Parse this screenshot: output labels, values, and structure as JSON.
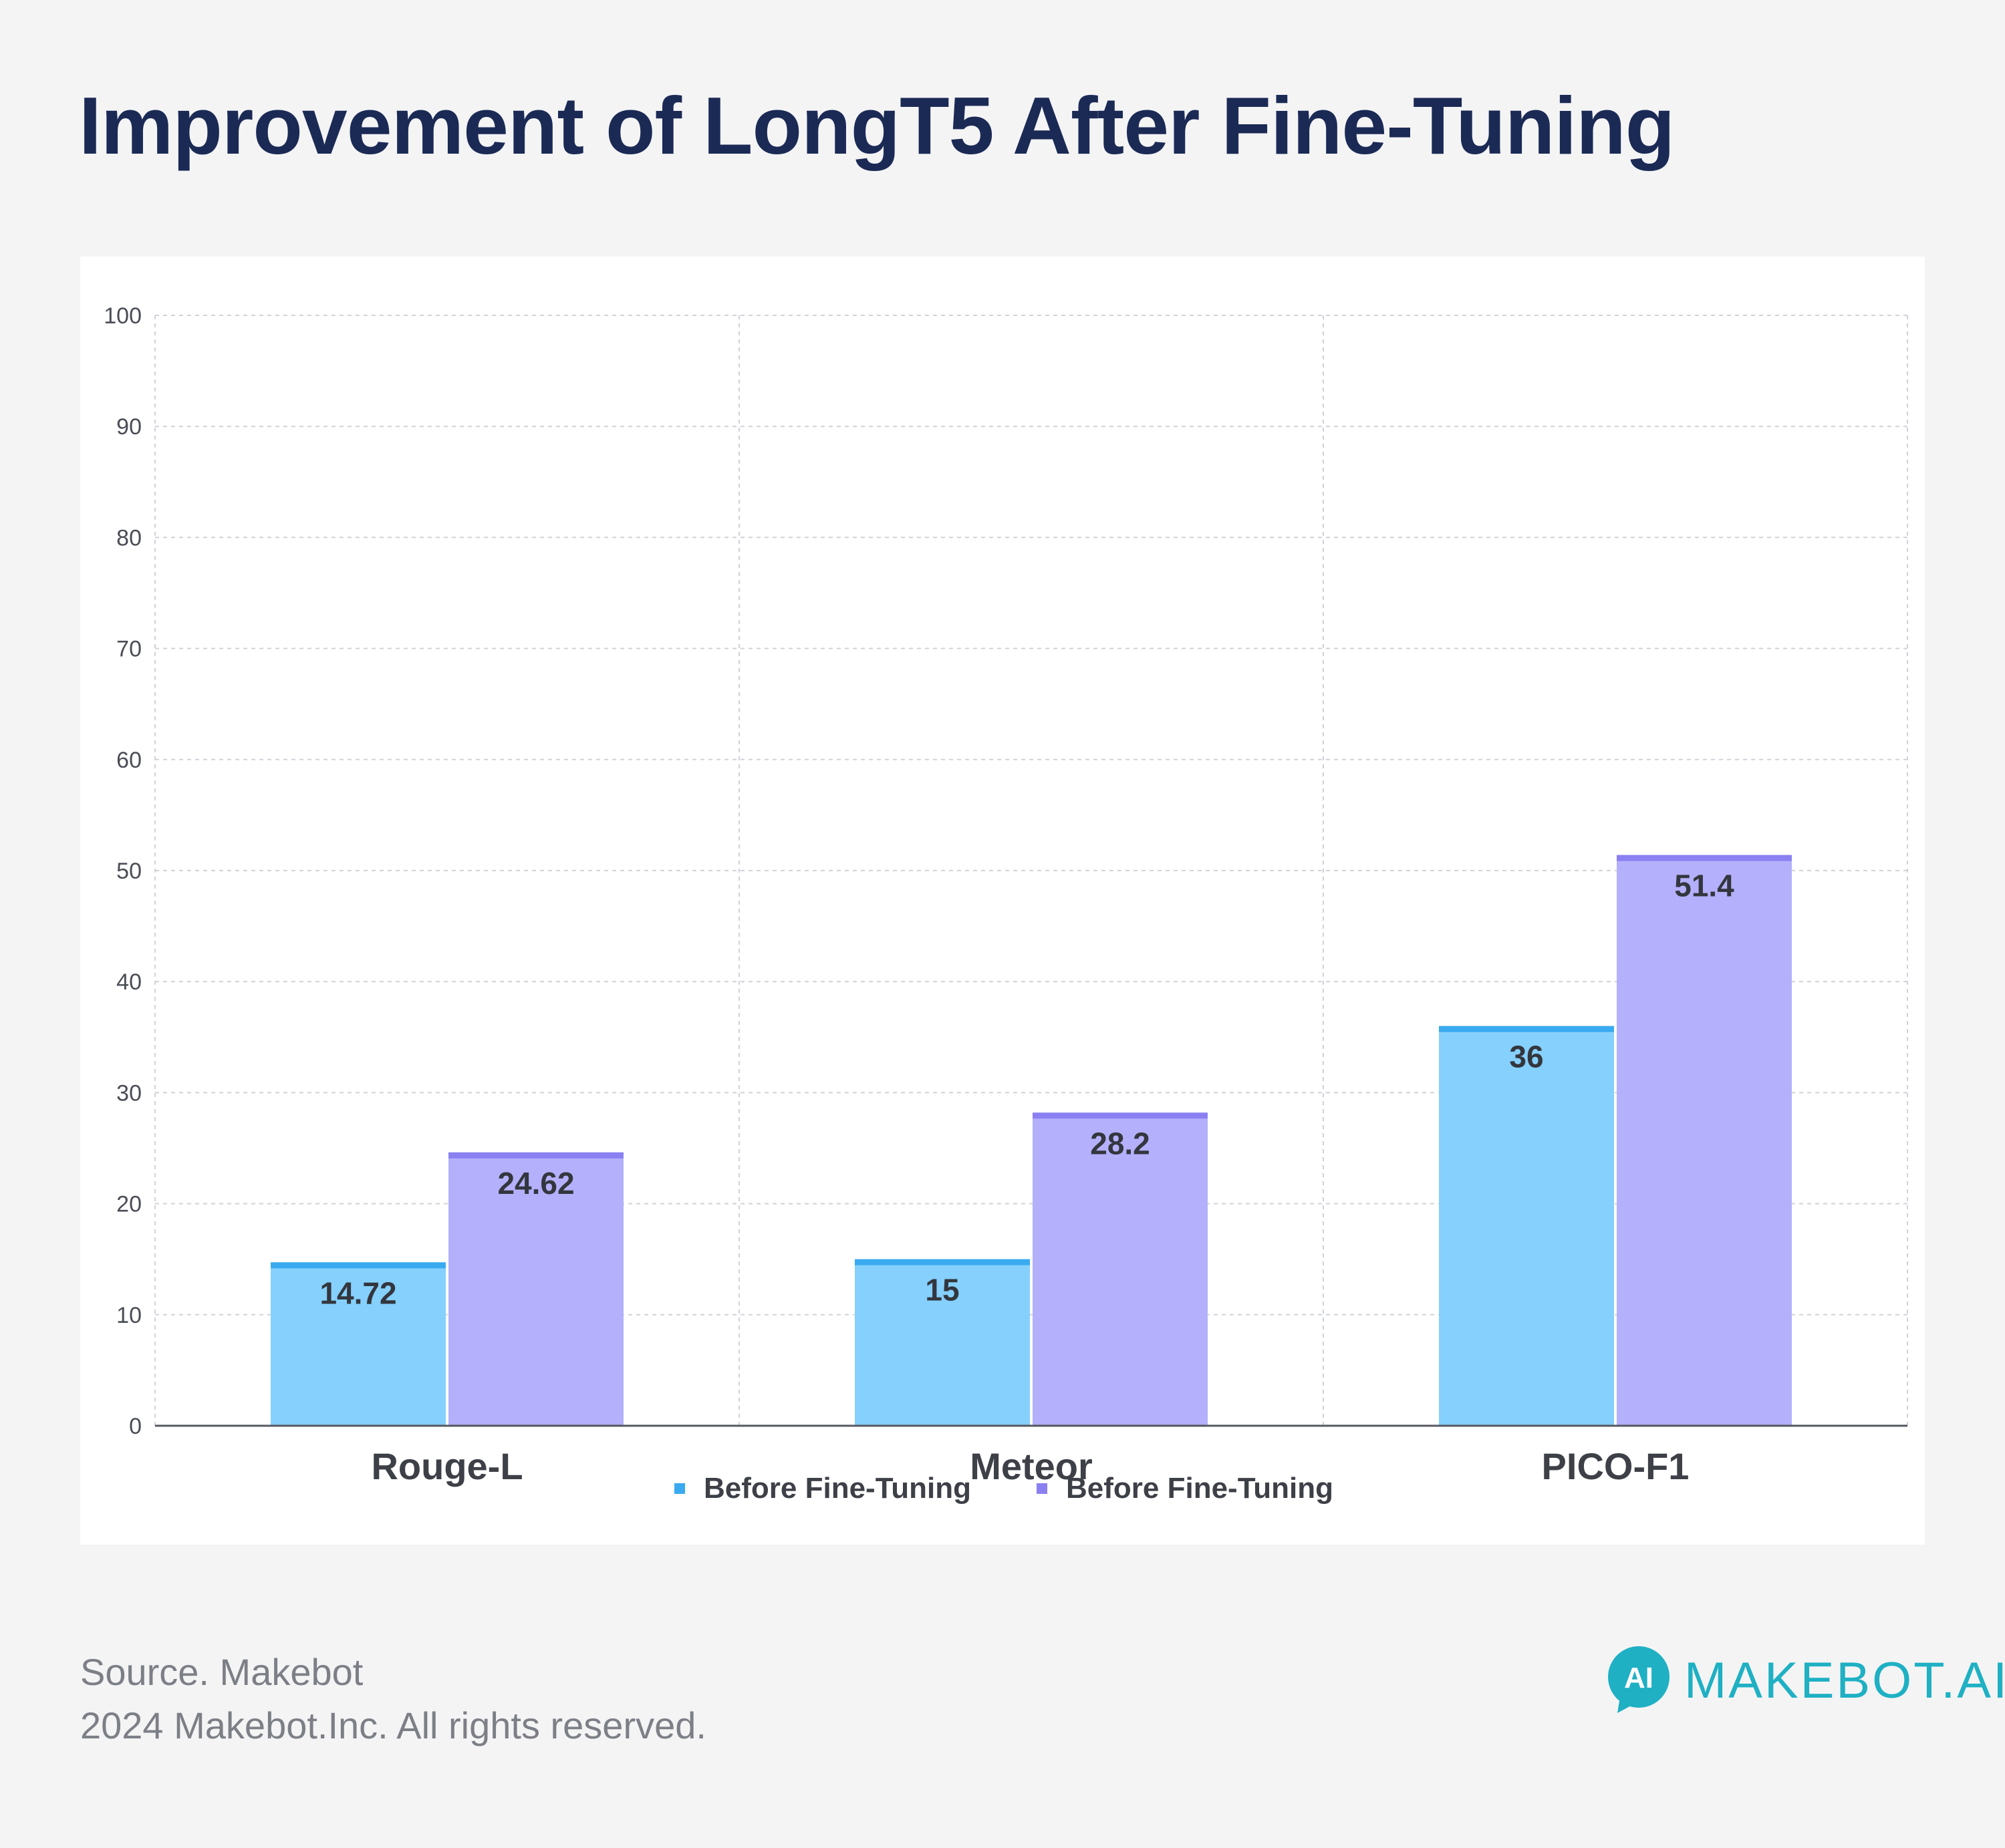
{
  "title": "Improvement of LongT5 After Fine-Tuning",
  "footer": {
    "source": "Source. Makebot",
    "copyright": "2024 Makebot.Inc. All rights reserved."
  },
  "logo": {
    "mark_text": "AI",
    "text": "MAKEBOT.AI",
    "color": "#1fb0c3"
  },
  "chart_data": {
    "type": "bar",
    "title": "",
    "xlabel": "",
    "ylabel": "",
    "ylim": [
      0,
      100
    ],
    "yticks": [
      0,
      10,
      20,
      30,
      40,
      50,
      60,
      70,
      80,
      90,
      100
    ],
    "grid": true,
    "legend_position": "bottom-center",
    "categories": [
      "Rouge-L",
      "Meteor",
      "PICO-F1"
    ],
    "series": [
      {
        "name": "Before Fine-Tuning",
        "values": [
          14.72,
          15,
          36
        ],
        "labels": [
          "14.72",
          "15",
          "36"
        ],
        "color": "#85d0fd",
        "cap_color": "#3aaaf0"
      },
      {
        "name": "Before Fine-Tuning",
        "values": [
          24.62,
          28.2,
          51.4
        ],
        "labels": [
          "24.62",
          "28.2",
          "51.4"
        ],
        "color": "#b4b0fb",
        "cap_color": "#8b80f2"
      }
    ]
  }
}
